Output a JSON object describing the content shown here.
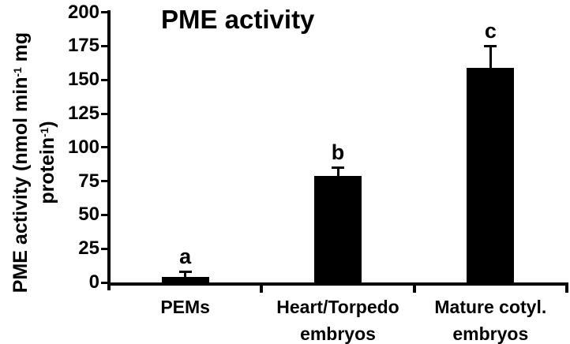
{
  "figure": {
    "title": "PME activity",
    "background_color": "#ffffff",
    "ink_color": "#000000"
  },
  "y_axis": {
    "label_full": "PME activity (nmol min⁻¹ mg protein⁻¹)",
    "label_line1": {
      "pre": "PME activity (nmol min",
      "sup": "-1",
      "post": " mg"
    },
    "label_line2": {
      "pre": "protein",
      "sup": "-1",
      "post": ")"
    },
    "ticks": [
      0,
      25,
      50,
      75,
      100,
      125,
      150,
      175,
      200
    ]
  },
  "chart_data": {
    "type": "bar",
    "title": "PME activity",
    "ylabel": "PME activity (nmol min⁻¹ mg protein⁻¹)",
    "xlabel": "",
    "categories": [
      "PEMs",
      "Heart/Torpedo embryos",
      "Mature cotyl. embryos"
    ],
    "category_lines": [
      [
        "PEMs"
      ],
      [
        "Heart/Torpedo",
        "embryos"
      ],
      [
        "Mature cotyl.",
        "embryos"
      ]
    ],
    "values": [
      4,
      79,
      159
    ],
    "errors_plus": [
      4,
      6,
      16
    ],
    "significance_letters": [
      "a",
      "b",
      "c"
    ],
    "ylim": [
      0,
      200
    ],
    "ytick_step": 25,
    "bar_color": "#000000",
    "grid": false,
    "legend": false
  }
}
